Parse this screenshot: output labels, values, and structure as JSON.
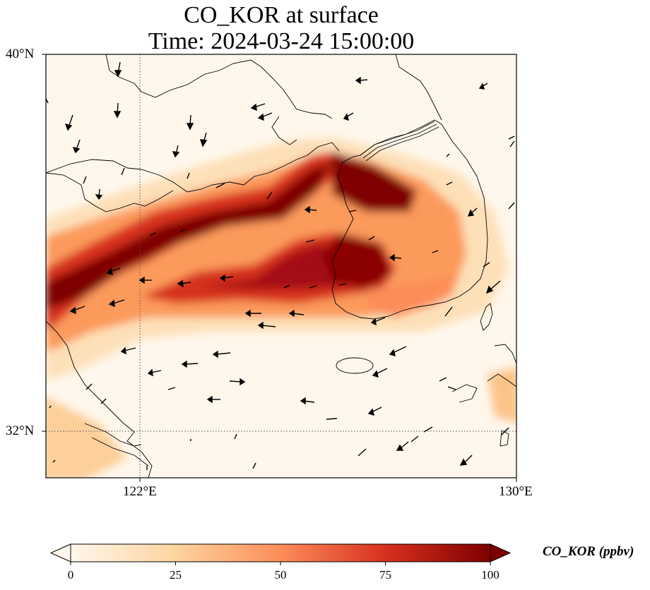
{
  "title": {
    "line1": "CO_KOR at surface",
    "line2": "Time: 2024-03-24 15:00:00"
  },
  "map": {
    "variable": "CO_KOR",
    "level": "surface",
    "extent": {
      "lon_min": 120,
      "lon_max": 130,
      "lat_min": 31,
      "lat_max": 40
    },
    "gridlines": {
      "lon": [
        122
      ],
      "lat": [
        32
      ],
      "style": "dotted"
    },
    "lat_ticks": [
      "40°N",
      "32°N"
    ],
    "lon_ticks": [
      "122°E",
      "130°E"
    ],
    "colormap": "OrRd",
    "wind_vectors": "shown",
    "features": [
      "coastline",
      "yellow-sea-plume",
      "korean-peninsula",
      "jeju-island",
      "tsushima"
    ]
  },
  "colorbar": {
    "label": "CO_KOR (ppbv)",
    "min": 0,
    "max": 100,
    "ticks": [
      "0",
      "25",
      "50",
      "75",
      "100"
    ],
    "extend": "both",
    "colors": [
      "#fff7ec",
      "#fdd49e",
      "#fc8d59",
      "#d7301f",
      "#7f0000"
    ]
  }
}
